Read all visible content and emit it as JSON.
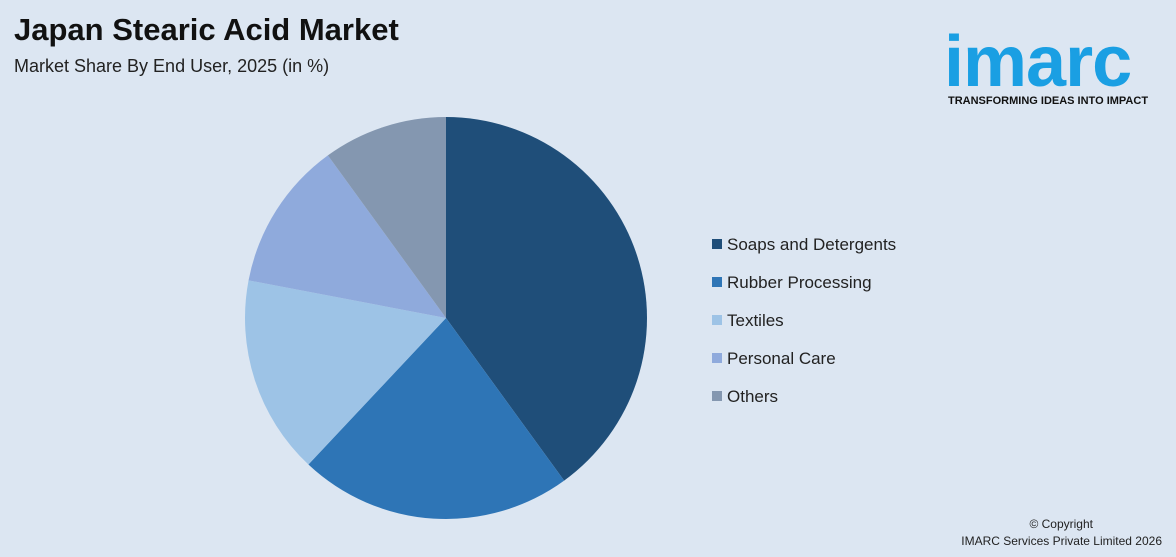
{
  "chart_data": {
    "type": "pie",
    "title": "Japan Stearic Acid Market",
    "subtitle": "Market Share By End User, 2025 (in %)",
    "categories": [
      "Soaps and Detergents",
      "Rubber Processing",
      "Textiles",
      "Personal Care",
      "Others"
    ],
    "values": [
      40,
      22,
      16,
      12,
      10
    ],
    "colors": [
      "#1f4e79",
      "#2e75b6",
      "#9dc3e6",
      "#8faadc",
      "#8497b0"
    ],
    "legend": "right"
  },
  "logo": {
    "text": "imarc",
    "tagline": "TRANSFORMING IDEAS INTO IMPACT"
  },
  "footer": {
    "copyright": "© Copyright",
    "company": "IMARC Services Private Limited 2026"
  }
}
